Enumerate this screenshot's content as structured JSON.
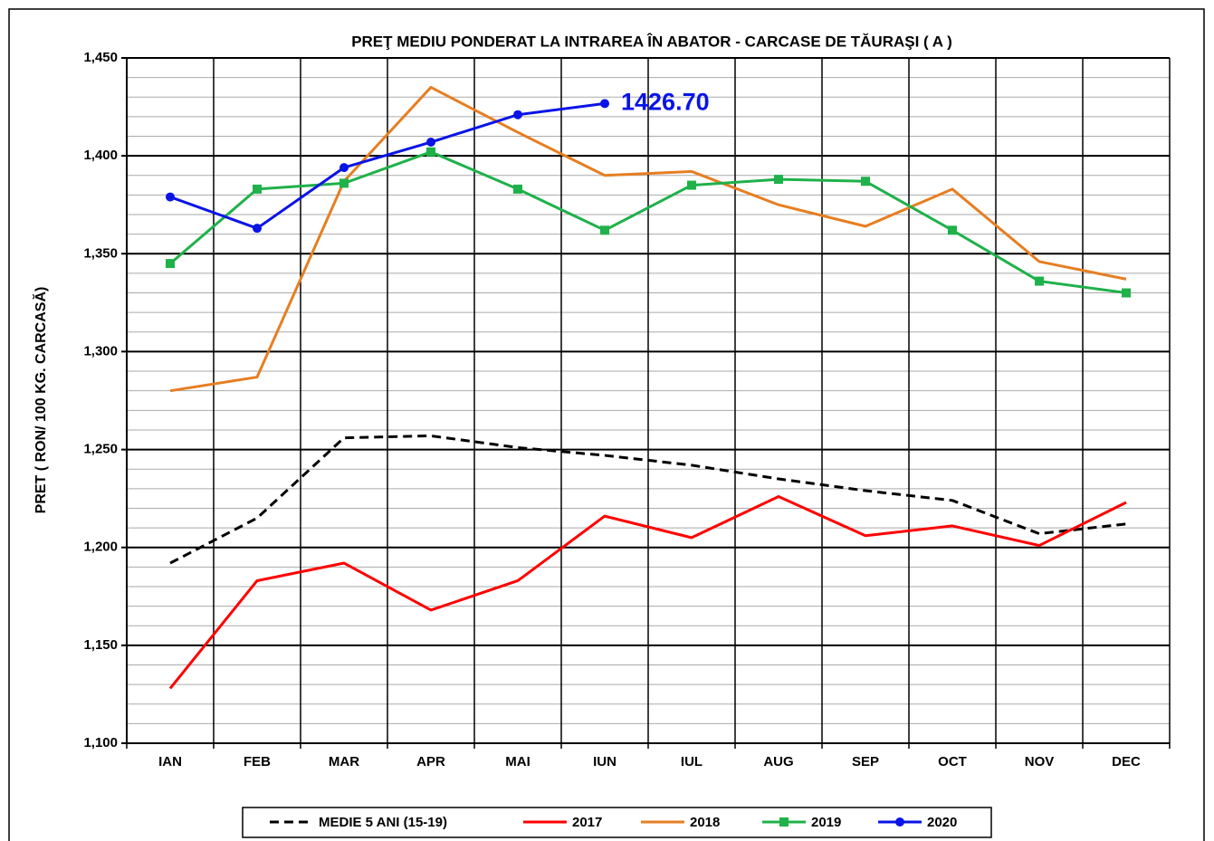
{
  "chart_data": {
    "type": "line",
    "title": "PREŢ MEDIU PONDERAT LA INTRAREA ÎN ABATOR - CARCASE DE TĂURAŞI ( A )",
    "y_label": "PRET ( RON/ 100 KG. CARCASĂ)",
    "categories": [
      "IAN",
      "FEB",
      "MAR",
      "APR",
      "MAI",
      "IUN",
      "IUL",
      "AUG",
      "SEP",
      "OCT",
      "NOV",
      "DEC"
    ],
    "ylim": [
      1100,
      1450
    ],
    "yticks": [
      {
        "value": 1100,
        "label": "1,100"
      },
      {
        "value": 1150,
        "label": "1,150"
      },
      {
        "value": 1200,
        "label": "1,200"
      },
      {
        "value": 1250,
        "label": "1,250"
      },
      {
        "value": 1300,
        "label": "1,300"
      },
      {
        "value": 1350,
        "label": "1,350"
      },
      {
        "value": 1400,
        "label": "1,400"
      },
      {
        "value": 1450,
        "label": "1,450"
      }
    ],
    "grid": true,
    "minor_grid_step": 10,
    "legend": "bottom",
    "series": [
      {
        "name": "MEDIE 5 ANI (15-19)",
        "color": "#000000",
        "dash": true,
        "marker": null,
        "values": [
          1192,
          1215,
          1256,
          1257,
          1251,
          1247,
          1242,
          1235,
          1229,
          1224,
          1207,
          1212
        ]
      },
      {
        "name": "2017",
        "color": "#ff0000",
        "dash": false,
        "marker": null,
        "values": [
          1128,
          1183,
          1192,
          1168,
          1183,
          1216,
          1205,
          1226,
          1206,
          1211,
          1201,
          1223
        ]
      },
      {
        "name": "2018",
        "color": "#e67e22",
        "dash": false,
        "marker": null,
        "values": [
          1280,
          1287,
          1387,
          1435,
          1412,
          1390,
          1392,
          1375,
          1364,
          1383,
          1346,
          1337
        ]
      },
      {
        "name": "2019",
        "color": "#1fb14a",
        "dash": false,
        "marker": "square",
        "values": [
          1345,
          1383,
          1386,
          1402,
          1383,
          1362,
          1385,
          1388,
          1387,
          1362,
          1336,
          1330
        ]
      },
      {
        "name": "2020",
        "color": "#0a14e6",
        "dash": false,
        "marker": "circle",
        "values": [
          1379,
          1363,
          1394,
          1407,
          1421,
          1426.7,
          null,
          null,
          null,
          null,
          null,
          null
        ],
        "value_labels": [
          null,
          null,
          null,
          null,
          null,
          "1426.70",
          null,
          null,
          null,
          null,
          null,
          null
        ]
      }
    ]
  }
}
